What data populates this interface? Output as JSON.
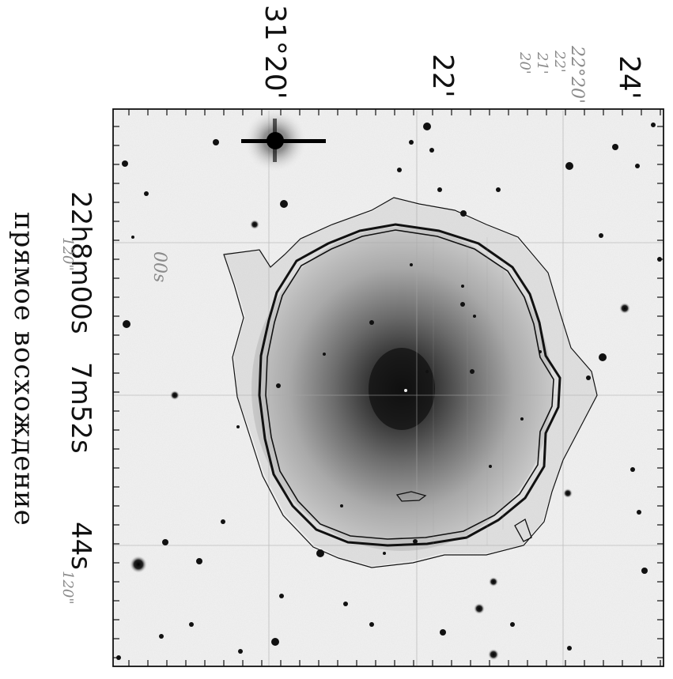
{
  "figure": {
    "dec_labels": {
      "d1": "31°20'",
      "d2": "22'",
      "d3": "24'"
    },
    "ra_labels": {
      "r1": "22h8m00s",
      "r2": "7m52s",
      "r3": "44s"
    },
    "axis_title": "прямое восхождение",
    "pencil_notes": {
      "n1": "22°20'",
      "n2": "22'",
      "n3": "21'",
      "n4": "20'",
      "n5": "120\"",
      "n6": "00s",
      "n7": "120\""
    },
    "colors": {
      "background": "#ffffff",
      "frame": "#111111",
      "contour": "#111111",
      "halo": "#2a2a2a",
      "pencil": "#8a8a8a"
    }
  }
}
